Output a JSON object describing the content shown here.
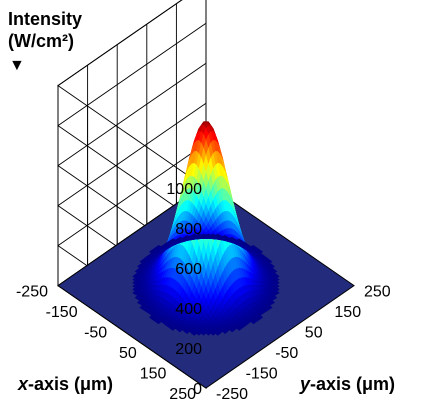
{
  "chart_data": {
    "type": "surface",
    "title": "",
    "zlabel": {
      "line1": "Intensity",
      "line2": "(W/cm²)",
      "arrow": "▼"
    },
    "xlabel": {
      "var": "x",
      "rest": "-axis (μm)"
    },
    "ylabel": {
      "var": "y",
      "rest": "-axis (μm)"
    },
    "x_range": [
      -250,
      250
    ],
    "y_range": [
      -250,
      250
    ],
    "z_range": [
      0,
      1000
    ],
    "x_ticks": [
      "-250",
      "-150",
      "-50",
      "50",
      "150",
      "250"
    ],
    "y_ticks": [
      "-250",
      "-150",
      "-50",
      "50",
      "150",
      "250"
    ],
    "z_ticks": [
      "0",
      "200",
      "400",
      "600",
      "800",
      "1000"
    ],
    "peak": {
      "x": 0,
      "y": 0,
      "z": 820
    },
    "beam_radius_1_e2": 110,
    "model": "gaussian",
    "colormap": "jet",
    "floor_color": "#232c7c",
    "grid": true
  }
}
